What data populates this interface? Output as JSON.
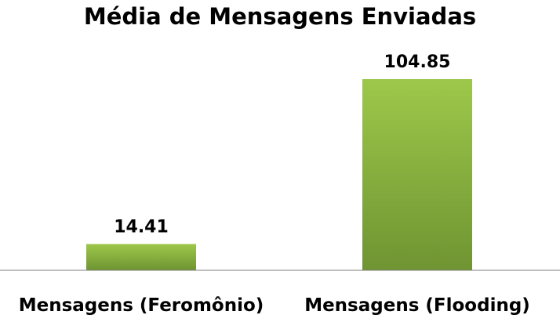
{
  "chart_data": {
    "type": "bar",
    "title": "Média de Mensagens Enviadas",
    "categories": [
      "Mensagens (Feromônio)",
      "Mensagens (Flooding)"
    ],
    "values": [
      14.41,
      104.85
    ],
    "data_labels": [
      "14.41",
      "104.85"
    ],
    "xlabel": "",
    "ylabel": "",
    "ylim": [
      0,
      104.85
    ],
    "grid": false,
    "legend": "none",
    "colors": {
      "bar_top": "#9DC84A",
      "bar_bottom": "#6F9432",
      "axis": "#808080"
    }
  }
}
